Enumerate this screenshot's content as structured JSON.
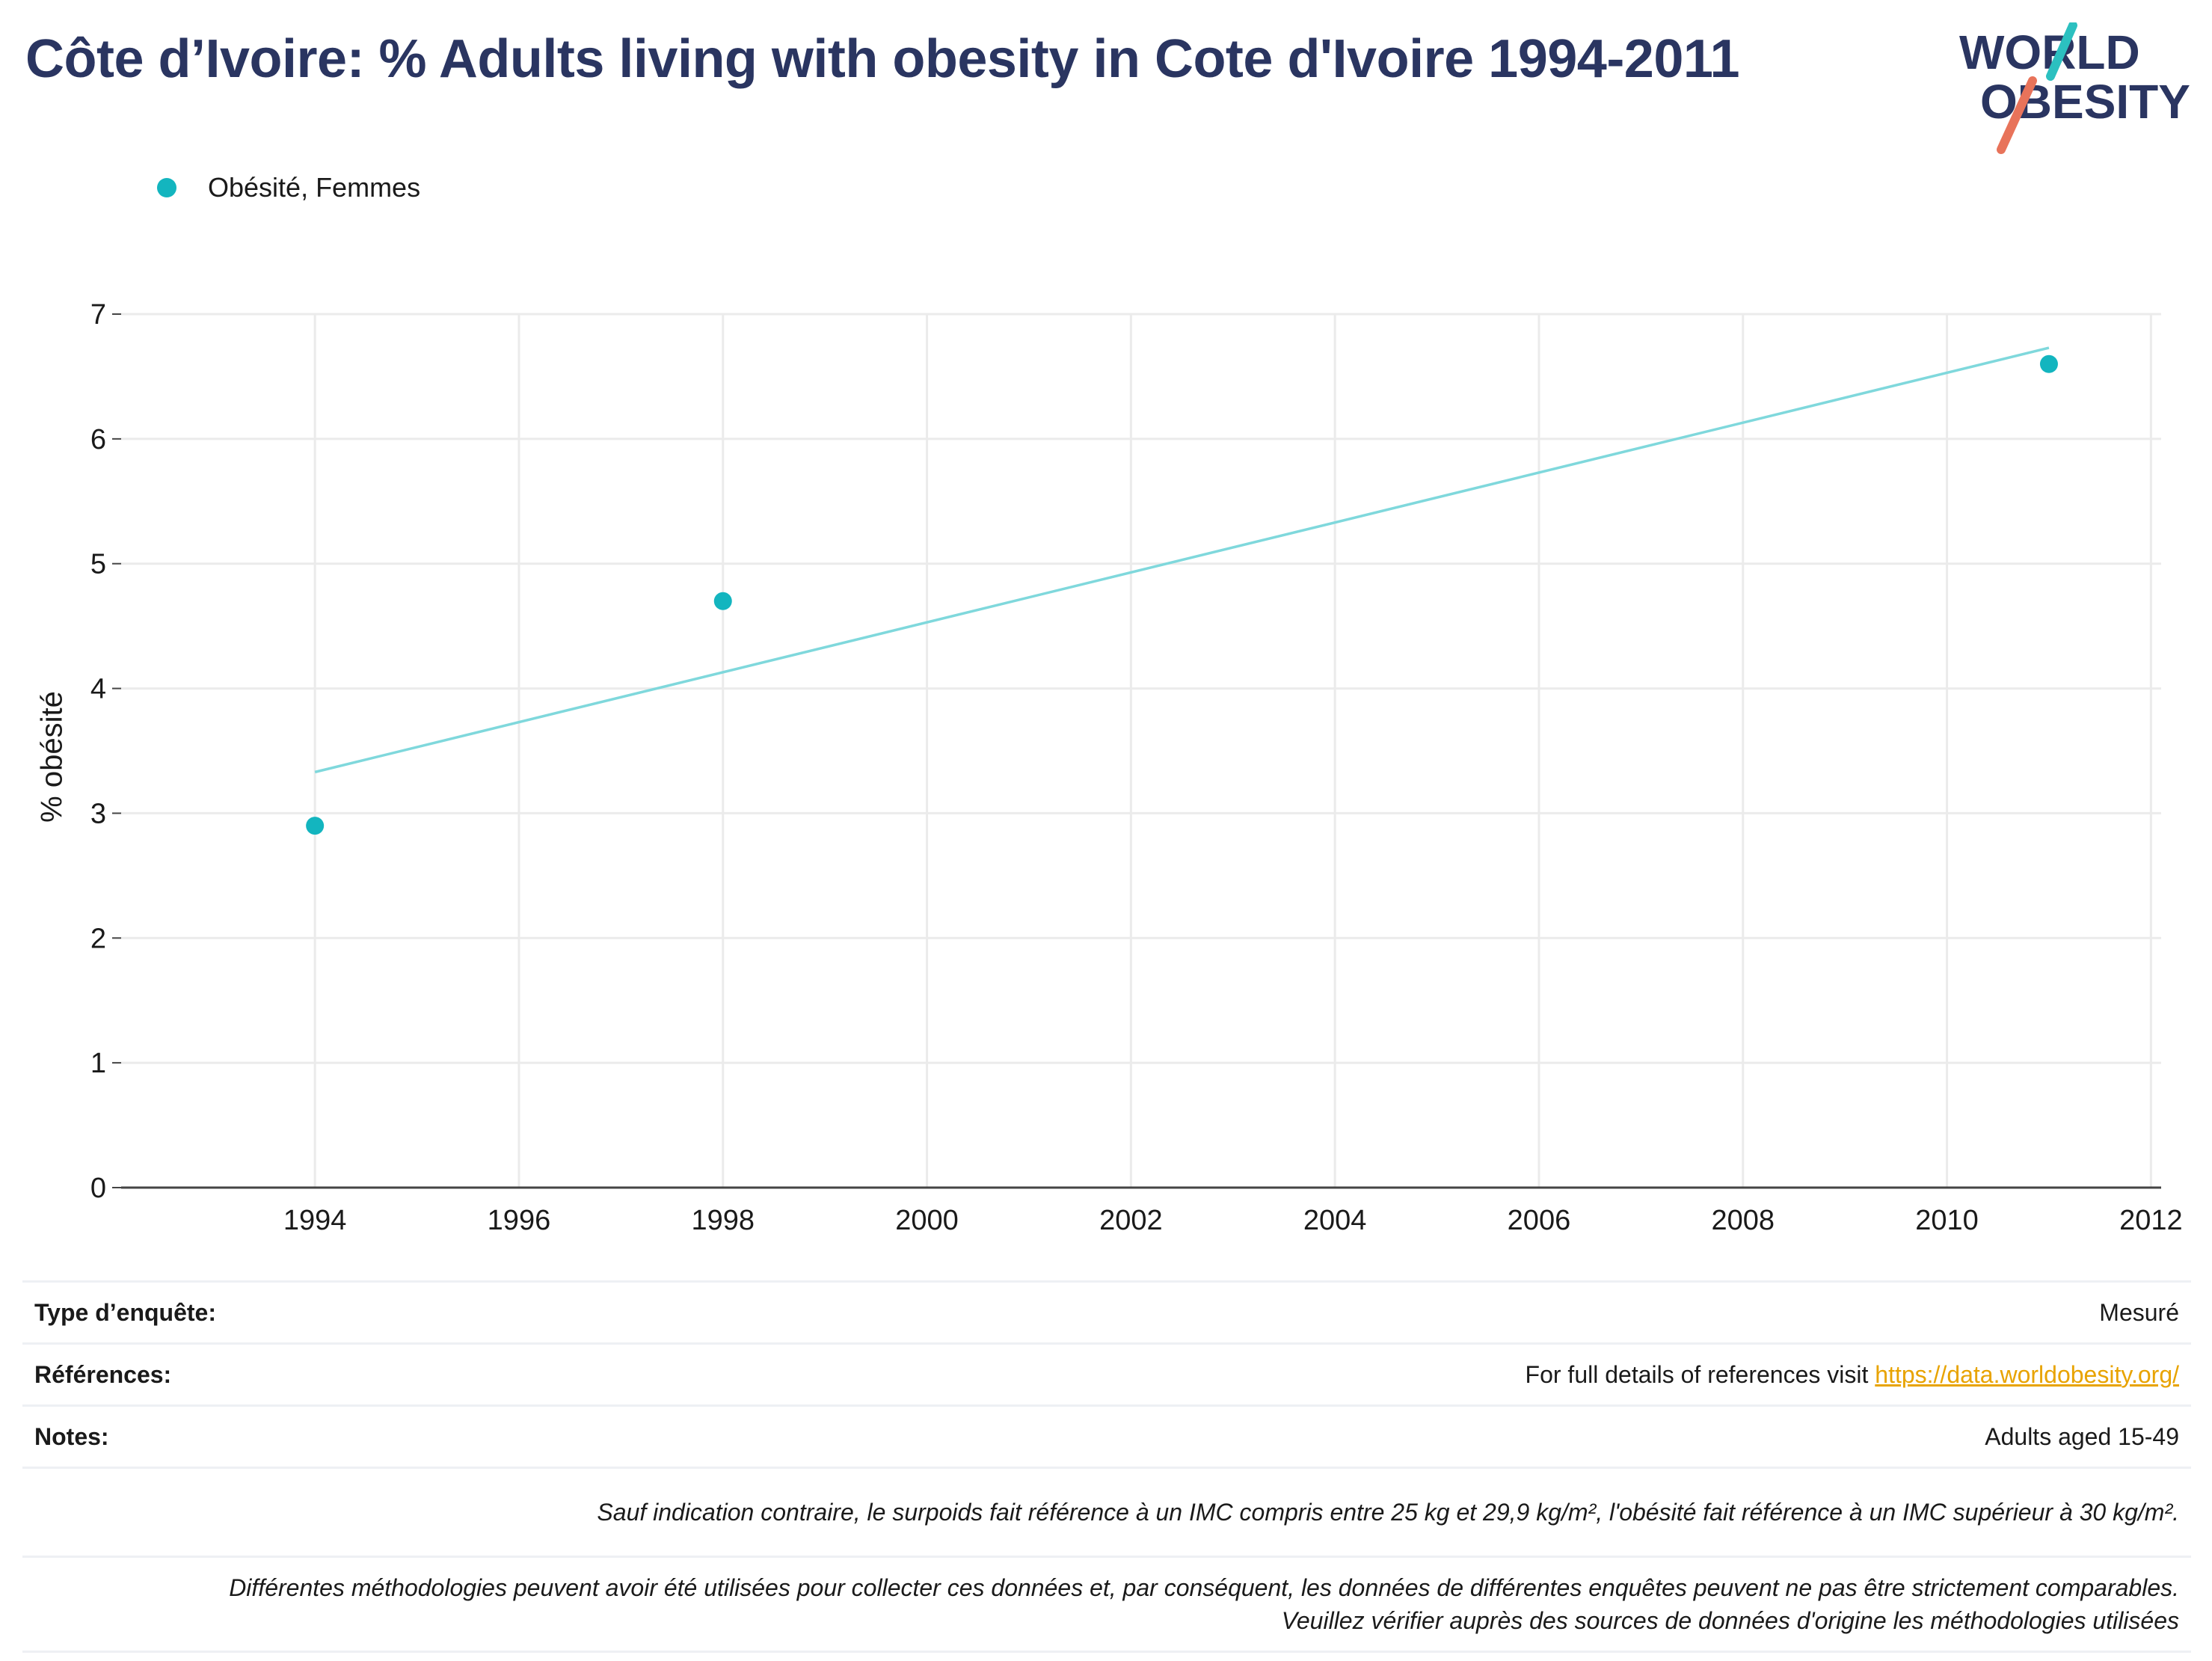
{
  "title": "Côte d’Ivoire: % Adults living with obesity in Cote d'Ivoire 1994-2011",
  "logo": {
    "line1": "WORLD",
    "line2": "OBESITY",
    "accent_teal": "#2cc0c0",
    "accent_coral": "#e8735a",
    "text_color": "#2a3561"
  },
  "colors": {
    "marker": "#13b5bf",
    "trend": "#7fd8dc",
    "grid": "#ebebeb",
    "axis": "#444444",
    "title": "#2a3561"
  },
  "chart_data": {
    "type": "scatter",
    "title": "Côte d’Ivoire: % Adults living with obesity in Cote d'Ivoire 1994-2011",
    "xlabel": "",
    "ylabel": "% obésité",
    "xlim": [
      1992.1,
      2012.1
    ],
    "ylim": [
      0,
      7
    ],
    "xticks": [
      1994,
      1996,
      1998,
      2000,
      2002,
      2004,
      2006,
      2008,
      2010,
      2012
    ],
    "yticks": [
      0,
      1,
      2,
      3,
      4,
      5,
      6,
      7
    ],
    "grid": true,
    "legend_position": "top-left",
    "series": [
      {
        "name": "Obésité, Femmes",
        "x": [
          1994,
          1998,
          2011
        ],
        "y": [
          2.9,
          4.7,
          6.6
        ]
      }
    ],
    "trendline": {
      "x": [
        1994,
        2011
      ],
      "y": [
        3.33,
        6.73
      ]
    }
  },
  "info": {
    "survey_type_label": "Type d’enquête:",
    "survey_type_value": "Mesuré",
    "references_label": "Références:",
    "references_text": "For full details of references visit ",
    "references_link": "https://data.worldobesity.org/",
    "notes_label": "Notes:",
    "notes_value": "Adults aged 15-49",
    "note_bmi": "Sauf indication contraire, le surpoids fait référence à un IMC compris entre 25 kg et 29,9 kg/m², l'obésité fait référence à un IMC supérieur à 30 kg/m².",
    "note_methods": "Différentes méthodologies peuvent avoir été utilisées pour collecter ces données et, par conséquent, les données de différentes enquêtes peuvent ne pas être strictement comparables. Veuillez vérifier auprès des sources de données d'origine les méthodologies utilisées"
  }
}
